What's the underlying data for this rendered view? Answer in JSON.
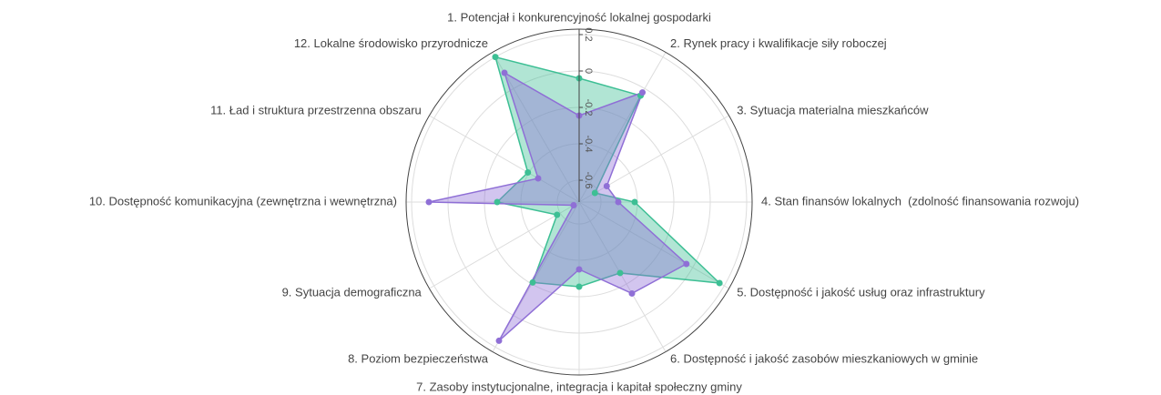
{
  "chart_data": {
    "type": "radar",
    "categories": [
      "1. Potencjał i konkurencyjność lokalnej gospodarki",
      "2. Rynek pracy i kwalifikacje siły roboczej",
      "3. Sytuacja materialna mieszkańców",
      "4. Stan finansów lokalnych  (zdolność finansowania rozwoju)",
      "5. Dostępność i jakość usług oraz infrastruktury",
      "6. Dostępność i jakość zasobów mieszkaniowych w gminie",
      "7. Zasoby instytucjonalne, integracja i kapitał społeczny gminy",
      "8. Poziom bezpieczeństwa",
      "9. Sytuacja demograficzna",
      "10. Dostępność komunikacyjna (zewnętrzna i wewnętrzna)",
      "11. Ład i struktura przestrzenna obszaru",
      "12. Lokalne środowisko przyrodnicze"
    ],
    "series": [
      {
        "color": "#3dbf94",
        "values": [
          -0.04,
          -0.045,
          -0.62,
          -0.415,
          0.17,
          -0.27,
          -0.255,
          -0.21,
          -0.58,
          -0.27,
          -0.395,
          0.2
        ]
      },
      {
        "color": "#8f6fd6",
        "values": [
          -0.245,
          -0.025,
          -0.545,
          -0.505,
          -0.04,
          -0.14,
          -0.35,
          0.16,
          -0.685,
          0.105,
          -0.46,
          0.1
        ]
      }
    ],
    "ylim": [
      -0.72,
      0.23
    ],
    "yticks": [
      -0.6,
      -0.4,
      -0.2,
      0,
      0.2
    ],
    "grid": true
  }
}
